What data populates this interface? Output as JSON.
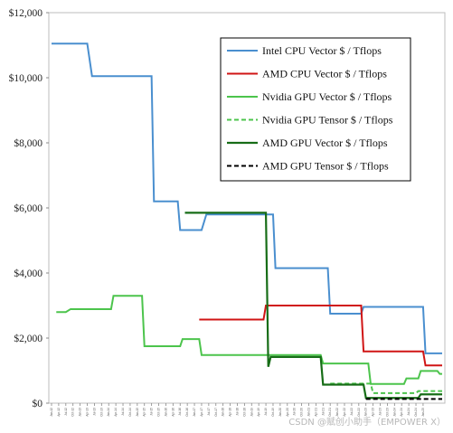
{
  "chart_data": {
    "type": "line",
    "step": true,
    "ylim": [
      0,
      12000
    ],
    "y_ticks": [
      {
        "value": 0,
        "label": "$0"
      },
      {
        "value": 2000,
        "label": "$2,000"
      },
      {
        "value": 4000,
        "label": "$4,000"
      },
      {
        "value": 6000,
        "label": "$6,000"
      },
      {
        "value": 8000,
        "label": "$8,000"
      },
      {
        "value": 10000,
        "label": "$10,000"
      },
      {
        "value": 12000,
        "label": "$12,000"
      }
    ],
    "x_ticks": [
      "Jan-12",
      "Apr-12",
      "Jul-12",
      "Oct-12",
      "Jan-13",
      "Apr-13",
      "Jul-13",
      "Oct-13",
      "Jan-14",
      "Apr-14",
      "Jul-14",
      "Oct-14",
      "Jan-15",
      "Apr-15",
      "Jul-15",
      "Oct-15",
      "Jan-16",
      "Apr-16",
      "Jul-16",
      "Oct-16",
      "Jan-17",
      "Apr-17",
      "Jul-17",
      "Oct-17",
      "Jan-18",
      "Apr-18",
      "Jul-18",
      "Oct-18",
      "Jan-19",
      "Apr-19",
      "Jul-19",
      "Oct-19",
      "Jan-20",
      "Apr-20",
      "Jul-20",
      "Oct-20",
      "Jan-21",
      "Apr-21",
      "Jul-21",
      "Oct-21",
      "Jan-22",
      "Apr-22",
      "Jul-22",
      "Oct-22",
      "Jan-23",
      "Apr-23",
      "Jul-23",
      "Oct-23",
      "Jan-24",
      "Apr-24",
      "Jul-24",
      "Oct-24",
      "Jan-25"
    ],
    "legend_position": "top-right",
    "grid": false,
    "series": [
      {
        "name": "Intel CPU Vector $ / Tflops",
        "color": "#4a8fcf",
        "dash": "solid",
        "width": 2,
        "points": [
          [
            "Jan-12",
            11050
          ],
          [
            "Apr-13",
            11050
          ],
          [
            "Jun-13",
            10050
          ],
          [
            "Jul-15",
            10050
          ],
          [
            "Aug-15",
            6200
          ],
          [
            "Jun-16",
            6200
          ],
          [
            "Jul-16",
            5320
          ],
          [
            "Apr-17",
            5320
          ],
          [
            "Jun-17",
            5800
          ],
          [
            "Oct-19",
            5800
          ],
          [
            "Nov-19",
            4150
          ],
          [
            "Sep-21",
            4150
          ],
          [
            "Oct-21",
            2750
          ],
          [
            "Nov-22",
            2750
          ],
          [
            "Dec-22",
            2960
          ],
          [
            "Jan-25",
            2960
          ],
          [
            "Feb-25",
            1530
          ],
          [
            "Sep-25",
            1530
          ]
        ]
      },
      {
        "name": "AMD CPU Vector $ / Tflops",
        "color": "#d01515",
        "dash": "solid",
        "width": 2,
        "points": [
          [
            "Mar-17",
            2570
          ],
          [
            "Jun-19",
            2570
          ],
          [
            "Jul-19",
            3000
          ],
          [
            "Nov-22",
            3000
          ],
          [
            "Dec-22",
            1590
          ],
          [
            "Jan-25",
            1590
          ],
          [
            "Feb-25",
            1160
          ],
          [
            "Sep-25",
            1160
          ]
        ]
      },
      {
        "name": "Nvidia GPU Vector $ / Tflops",
        "color": "#4cc44c",
        "dash": "solid",
        "width": 2,
        "points": [
          [
            "Mar-12",
            2800
          ],
          [
            "Jul-12",
            2800
          ],
          [
            "Sep-12",
            2890
          ],
          [
            "Feb-14",
            2890
          ],
          [
            "Mar-14",
            3300
          ],
          [
            "Mar-15",
            3300
          ],
          [
            "Apr-15",
            1750
          ],
          [
            "Jul-16",
            1750
          ],
          [
            "Aug-16",
            1970
          ],
          [
            "Mar-17",
            1970
          ],
          [
            "Apr-17",
            1480
          ],
          [
            "Jun-21",
            1480
          ],
          [
            "Jul-21",
            1220
          ],
          [
            "Feb-23",
            1220
          ],
          [
            "Mar-23",
            590
          ],
          [
            "May-24",
            590
          ],
          [
            "Jun-24",
            760
          ],
          [
            "Nov-24",
            760
          ],
          [
            "Dec-24",
            990
          ],
          [
            "Jul-25",
            990
          ],
          [
            "Aug-25",
            900
          ],
          [
            "Sep-25",
            900
          ]
        ]
      },
      {
        "name": "Nvidia  GPU Tensor $ / Tflops",
        "color": "#4cc44c",
        "dash": "dashed",
        "width": 2,
        "points": [
          [
            "Oct-21",
            600
          ],
          [
            "Mar-23",
            600
          ],
          [
            "Apr-23",
            310
          ],
          [
            "Oct-24",
            310
          ],
          [
            "Nov-24",
            370
          ],
          [
            "Sep-25",
            370
          ]
        ]
      },
      {
        "name": "AMD GPU Vector $ / Tflops",
        "color": "#176d17",
        "dash": "solid",
        "width": 2.2,
        "points": [
          [
            "Sep-16",
            5850
          ],
          [
            "Jul-19",
            5850
          ],
          [
            "Aug-19",
            1120
          ],
          [
            "Sep-19",
            1420
          ],
          [
            "Jun-21",
            1420
          ],
          [
            "Jul-21",
            570
          ],
          [
            "Dec-22",
            570
          ],
          [
            "Jan-23",
            160
          ],
          [
            "Nov-24",
            160
          ],
          [
            "Dec-24",
            270
          ],
          [
            "Sep-25",
            270
          ]
        ]
      },
      {
        "name": "AMD GPU Tensor $ / Tflops",
        "color": "#000000",
        "dash": "dashed",
        "width": 2,
        "points": [
          [
            "Jan-23",
            130
          ],
          [
            "Sep-25",
            130
          ]
        ]
      }
    ]
  },
  "watermark": "CSDN @赋创小助手（EMPOWER X）"
}
